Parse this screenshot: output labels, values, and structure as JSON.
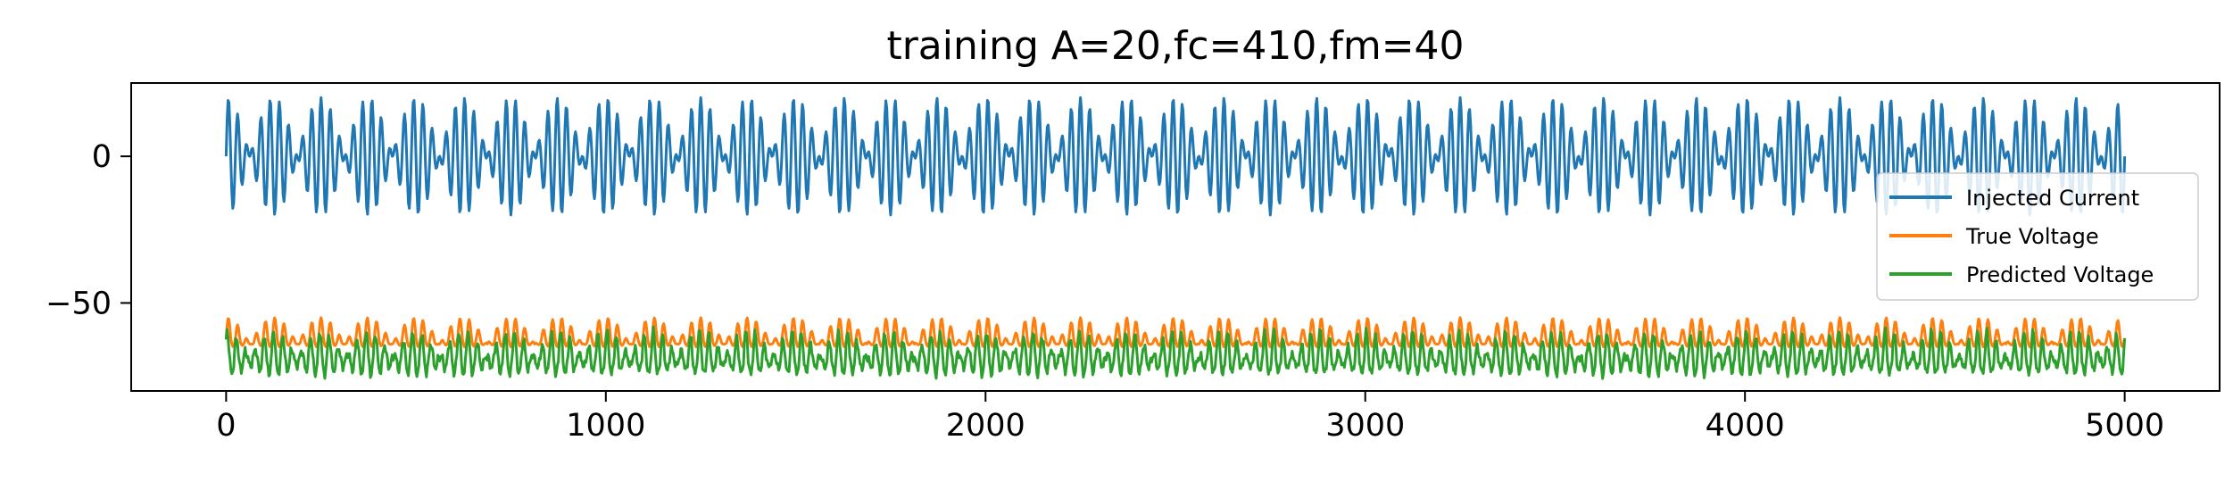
{
  "chart_data": {
    "type": "line",
    "title": "training A=20,fc=410,fm=40",
    "xlabel": "",
    "ylabel": "",
    "xlim": [
      -250,
      5250
    ],
    "ylim": [
      -80,
      25
    ],
    "xticks": [
      0,
      1000,
      2000,
      3000,
      4000,
      5000
    ],
    "yticks": [
      0,
      -50
    ],
    "ytick_labels": [
      "0",
      "−50"
    ],
    "grid": false,
    "legend_position": "center-right",
    "x_range": [
      0,
      5000
    ],
    "series": [
      {
        "name": "Injected Current",
        "color": "#1f77b4",
        "form": "20*cos(2*pi*40*t)*sin(2*pi*410*t)",
        "amplitude": 20,
        "offset": 0,
        "fc": 410,
        "fm": 40
      },
      {
        "name": "True Voltage",
        "color": "#ff7f0e",
        "approx_center": -62,
        "approx_min": -67,
        "approx_max": -55
      },
      {
        "name": "Predicted Voltage",
        "color": "#2ca02c",
        "approx_center": -69,
        "approx_min": -75,
        "approx_max": -58
      }
    ]
  }
}
